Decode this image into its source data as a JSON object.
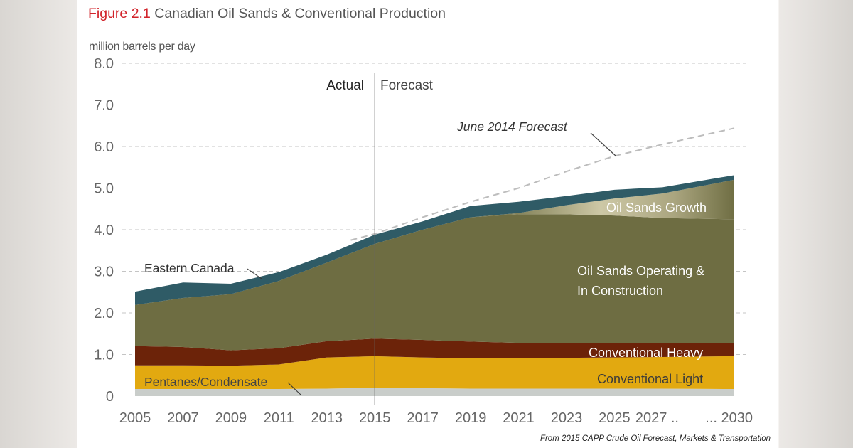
{
  "title": {
    "figure": "Figure 2.1",
    "text": "Canadian Oil Sands & Conventional Production"
  },
  "source": "From 2015 CAPP Crude Oil Forecast, Markets & Transportation",
  "chart_data": {
    "type": "area",
    "stacked": true,
    "title": "Canadian Oil Sands & Conventional Production",
    "ylabel": "million barrels per day",
    "xlabel": "",
    "ylim": [
      0,
      8
    ],
    "xlim": [
      2005,
      2030
    ],
    "grid": true,
    "y_ticks": [
      "0",
      "1.0",
      "2.0",
      "3.0",
      "4.0",
      "5.0",
      "6.0",
      "7.0",
      "8.0"
    ],
    "x_ticks": [
      {
        "year": 2005,
        "label": "2005"
      },
      {
        "year": 2007,
        "label": "2007"
      },
      {
        "year": 2009,
        "label": "2009"
      },
      {
        "year": 2011,
        "label": "2011"
      },
      {
        "year": 2013,
        "label": "2013"
      },
      {
        "year": 2015,
        "label": "2015"
      },
      {
        "year": 2017,
        "label": "2017"
      },
      {
        "year": 2019,
        "label": "2019"
      },
      {
        "year": 2021,
        "label": "2021"
      },
      {
        "year": 2023,
        "label": "2023"
      },
      {
        "year": 2025,
        "label": "2025"
      },
      {
        "year": 2027,
        "label": "2027 .."
      },
      {
        "year": 2030,
        "label": "... 2030"
      }
    ],
    "divider": {
      "year": 2015,
      "left_label": "Actual",
      "right_label": "Forecast"
    },
    "x": [
      2005,
      2007,
      2009,
      2011,
      2013,
      2015,
      2017,
      2019,
      2021,
      2023,
      2025,
      2027,
      2030
    ],
    "series": [
      {
        "name": "Pentanes/Condensate",
        "color": "#c9cdca",
        "values": [
          0.17,
          0.17,
          0.17,
          0.17,
          0.18,
          0.2,
          0.19,
          0.18,
          0.18,
          0.18,
          0.18,
          0.18,
          0.17
        ]
      },
      {
        "name": "Conventional Light",
        "color": "#e2a910",
        "values": [
          0.57,
          0.57,
          0.56,
          0.59,
          0.75,
          0.76,
          0.74,
          0.73,
          0.73,
          0.74,
          0.75,
          0.76,
          0.79
        ]
      },
      {
        "name": "Conventional Heavy",
        "color": "#6c2309",
        "values": [
          0.46,
          0.44,
          0.37,
          0.39,
          0.39,
          0.42,
          0.42,
          0.4,
          0.37,
          0.36,
          0.35,
          0.34,
          0.32
        ]
      },
      {
        "name": "Oil Sands Operating & In Construction",
        "color": "#6e6d42",
        "values": [
          0.99,
          1.18,
          1.35,
          1.62,
          1.89,
          2.28,
          2.65,
          2.99,
          3.09,
          3.09,
          3.06,
          3.0,
          2.97
        ]
      },
      {
        "name": "Oil Sands Growth",
        "color": "#bdb893",
        "values": [
          0,
          0,
          0,
          0,
          0,
          0,
          0,
          0,
          0.03,
          0.22,
          0.41,
          0.59,
          0.95
        ]
      },
      {
        "name": "Eastern Canada",
        "color": "#2f5b66",
        "values": [
          0.32,
          0.37,
          0.25,
          0.21,
          0.19,
          0.22,
          0.2,
          0.27,
          0.27,
          0.22,
          0.21,
          0.15,
          0.11
        ]
      }
    ],
    "reference_line": {
      "name": "June 2014 Forecast",
      "style": "dashed",
      "color": "#bbbbbb",
      "x": [
        2014,
        2015,
        2017,
        2019,
        2021,
        2023,
        2025,
        2027,
        2030
      ],
      "values": [
        3.75,
        3.9,
        4.3,
        4.67,
        5.0,
        5.4,
        5.77,
        6.05,
        6.44
      ]
    },
    "labels": {
      "eastern": "Eastern Canada",
      "pentanes": "Pentanes/Condensate",
      "june": "June 2014 Forecast",
      "growth": "Oil Sands Growth",
      "operating_1": "Oil Sands Operating &",
      "operating_2": "In Construction",
      "heavy": "Conventional Heavy",
      "light": "Conventional Light"
    }
  }
}
